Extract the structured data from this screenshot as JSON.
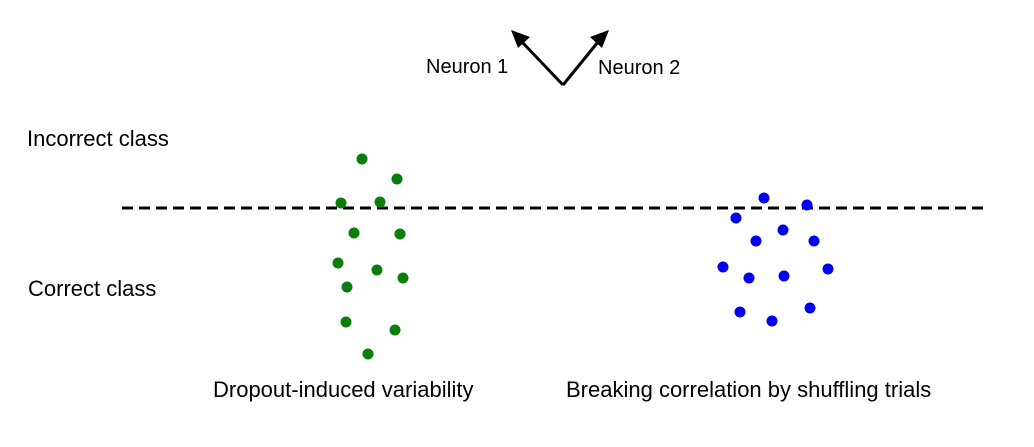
{
  "axes": {
    "neuron1_label": "Neuron 1",
    "neuron2_label": "Neuron 2"
  },
  "regions": {
    "incorrect_label": "Incorrect class",
    "correct_label": "Correct class"
  },
  "panels": {
    "left_caption": "Dropout-induced variability",
    "right_caption": "Breaking correlation by shuffling trials"
  },
  "colors": {
    "left_points": "#0a7d0a",
    "right_points": "#0000ee",
    "ink": "#000000"
  }
}
